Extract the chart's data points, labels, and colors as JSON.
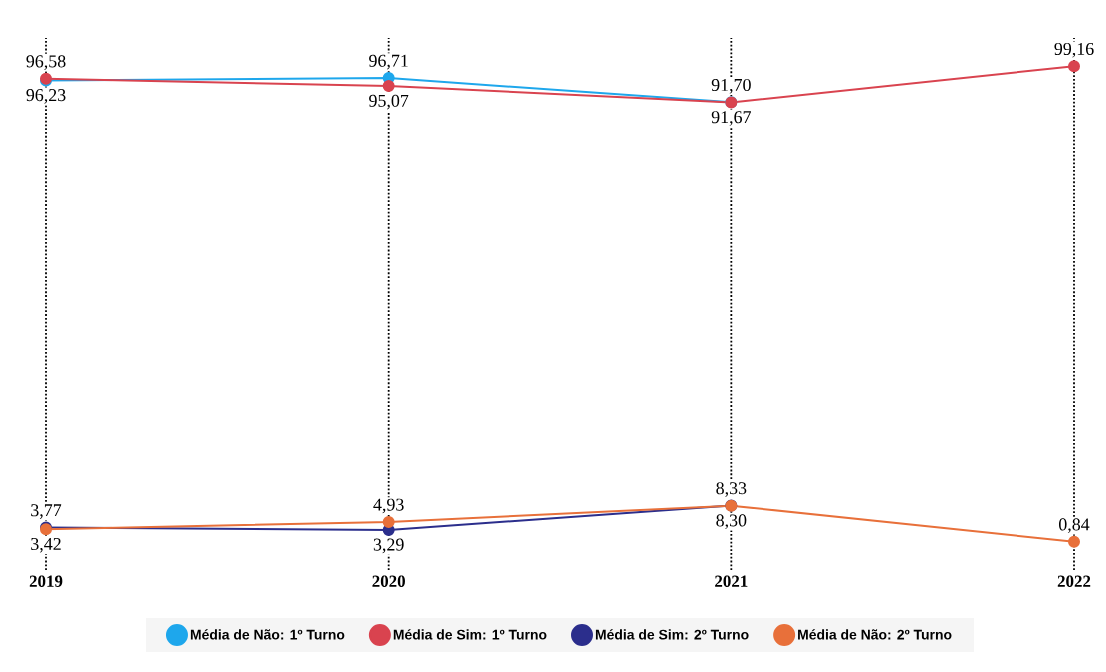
{
  "chart_data": {
    "type": "line",
    "categories": [
      "2019",
      "2020",
      "2021",
      "2022"
    ],
    "series": [
      {
        "name": "Média de Não: 1º Turno",
        "color": "#1ea7ec",
        "values": [
          96.23,
          96.71,
          91.7,
          null
        ],
        "value_labels": [
          "96,23",
          "96,71",
          "91,70",
          null
        ]
      },
      {
        "name": "Média de Sim: 1º Turno",
        "color": "#d9434f",
        "values": [
          96.58,
          95.07,
          91.67,
          99.16
        ],
        "value_labels": [
          "96,58",
          "95,07",
          "91,67",
          "99,16"
        ]
      },
      {
        "name": "Média de Sim: 2º Turno",
        "color": "#2b2e8c",
        "values": [
          3.77,
          3.29,
          8.33,
          null
        ],
        "value_labels": [
          "3,77",
          "3,29",
          "8,33",
          null
        ]
      },
      {
        "name": "Média de Não: 2º Turno",
        "color": "#e8703a",
        "values": [
          3.42,
          4.93,
          8.3,
          0.84
        ],
        "value_labels": [
          "3,42",
          "4,93",
          "8,30",
          "0,84"
        ]
      }
    ],
    "ylim": [
      -5,
      105
    ],
    "marker": "circle",
    "line_style": "solid",
    "grid": false,
    "legend": "bottom",
    "ref_lines": [
      {
        "axis": "x",
        "value": "2019",
        "color": "#000000",
        "line_style": "dotted"
      },
      {
        "axis": "x",
        "value": "2020",
        "color": "#000000",
        "line_style": "dotted"
      },
      {
        "axis": "x",
        "value": "2021",
        "color": "#000000",
        "line_style": "dotted"
      },
      {
        "axis": "x",
        "value": "2022",
        "color": "#000000",
        "line_style": "dotted"
      }
    ]
  }
}
